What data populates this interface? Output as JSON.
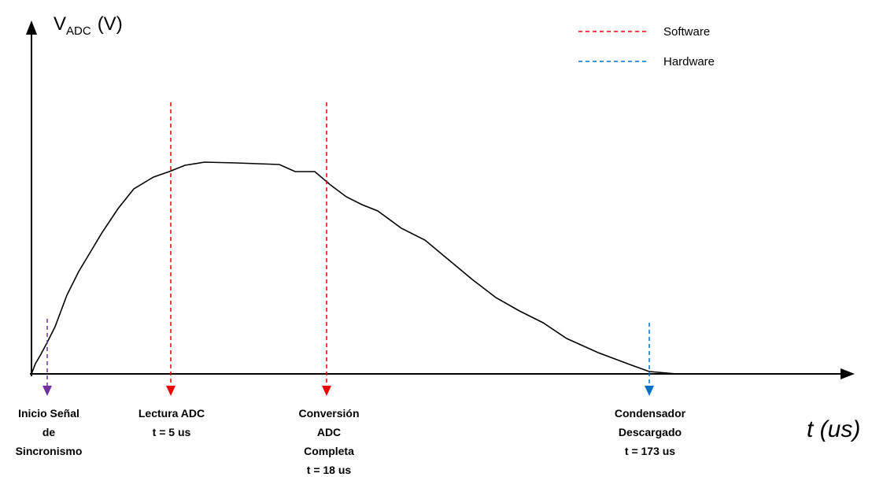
{
  "axes": {
    "y_label": {
      "main": "V",
      "sub": "ADC",
      "unit": "(V)"
    },
    "x_label": "t (us)"
  },
  "legend": [
    {
      "label": "Software"
    },
    {
      "label": "Hardware"
    }
  ],
  "markers": [
    {
      "lines": [
        "Inicio Señal",
        "de",
        "Sincronismo"
      ]
    },
    {
      "lines": [
        "Lectura ADC",
        "t = 5 us"
      ]
    },
    {
      "lines": [
        "Conversión",
        "ADC",
        "Completa",
        "t = 18 us"
      ]
    },
    {
      "lines": [
        "Condensador",
        "Descargado",
        "t = 173 us"
      ]
    }
  ]
}
